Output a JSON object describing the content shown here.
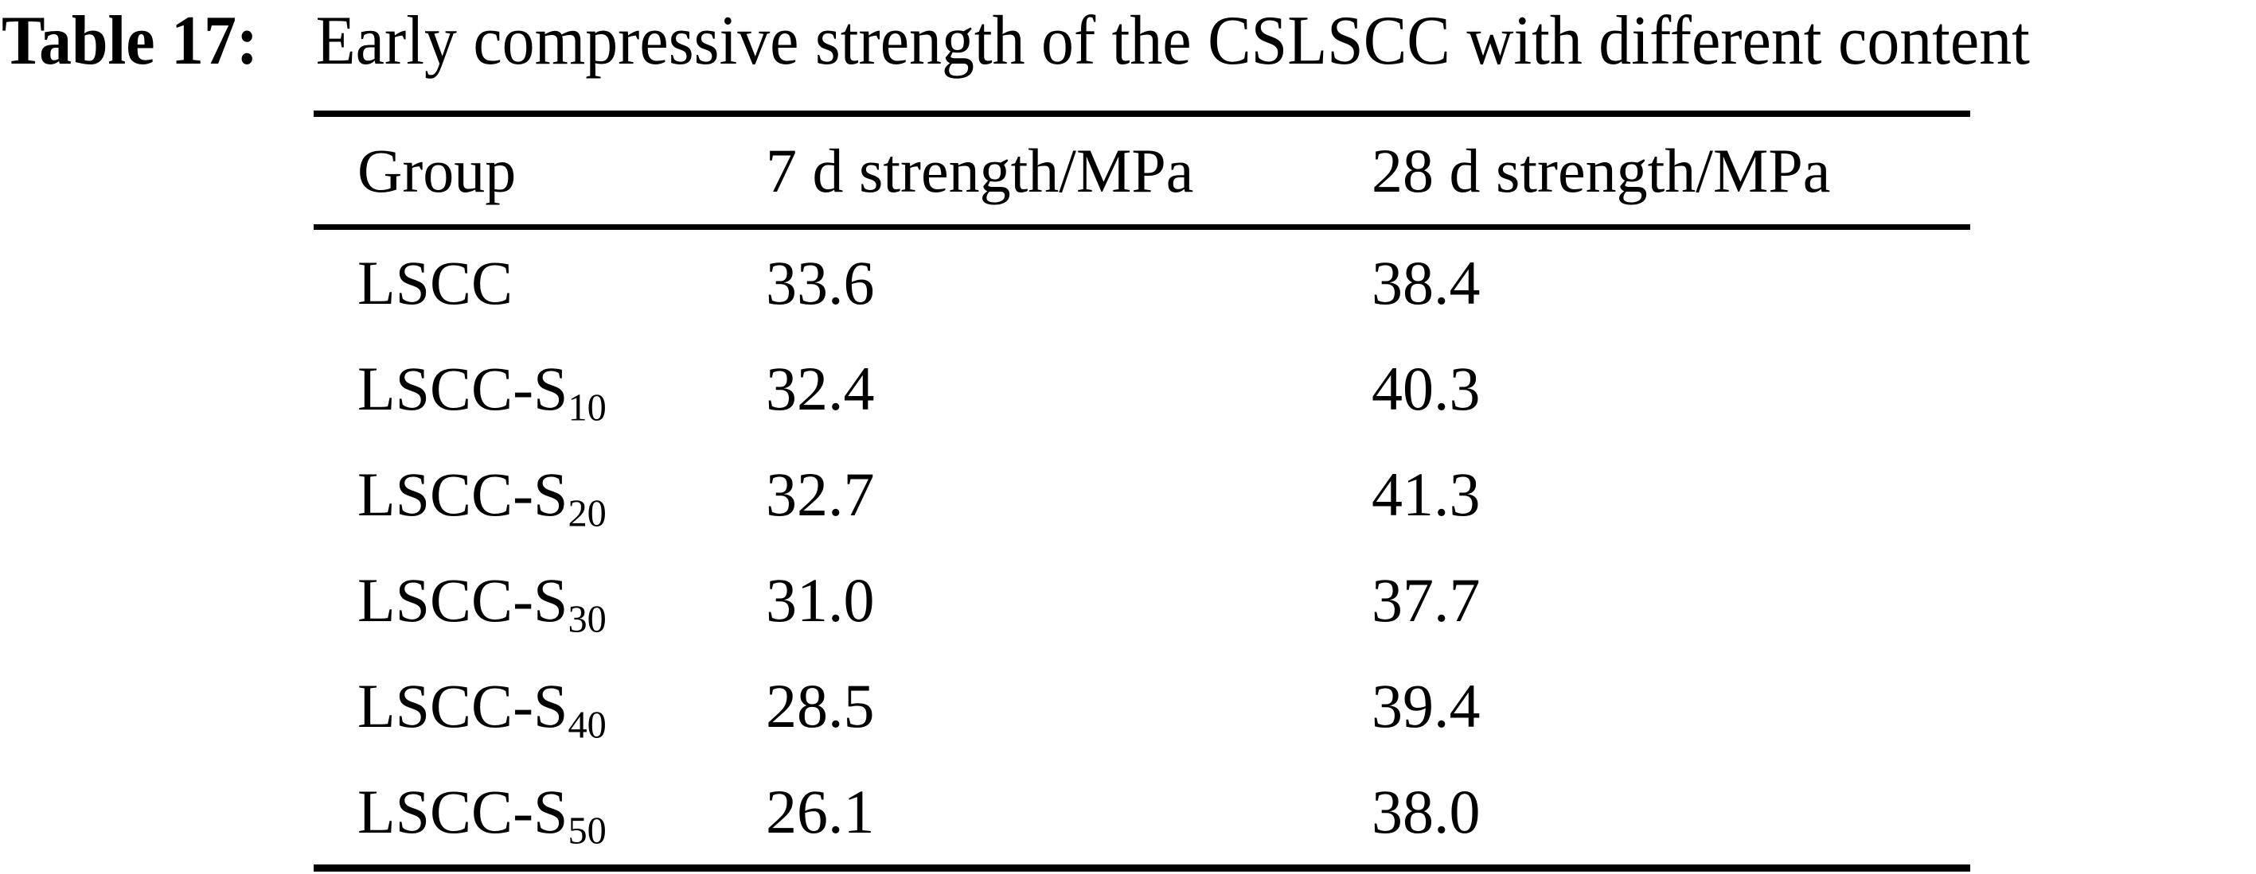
{
  "caption": {
    "label": "Table 17:",
    "text": "Early compressive strength of the CSLSCC with different content"
  },
  "table": {
    "columns": [
      "Group",
      "7 d strength/MPa",
      "28 d strength/MPa"
    ],
    "rows": [
      {
        "group": {
          "base": "LSCC",
          "sub": ""
        },
        "d7": "33.6",
        "d28": "38.4"
      },
      {
        "group": {
          "base": "LSCC-S",
          "sub": "10"
        },
        "d7": "32.4",
        "d28": "40.3"
      },
      {
        "group": {
          "base": "LSCC-S",
          "sub": "20"
        },
        "d7": "32.7",
        "d28": "41.3"
      },
      {
        "group": {
          "base": "LSCC-S",
          "sub": "30"
        },
        "d7": "31.0",
        "d28": "37.7"
      },
      {
        "group": {
          "base": "LSCC-S",
          "sub": "40"
        },
        "d7": "28.5",
        "d28": "39.4"
      },
      {
        "group": {
          "base": "LSCC-S",
          "sub": "50"
        },
        "d7": "26.1",
        "d28": "38.0"
      }
    ]
  },
  "colors": {
    "background": "#ffffff",
    "text": "#000000",
    "rule": "#000000"
  }
}
